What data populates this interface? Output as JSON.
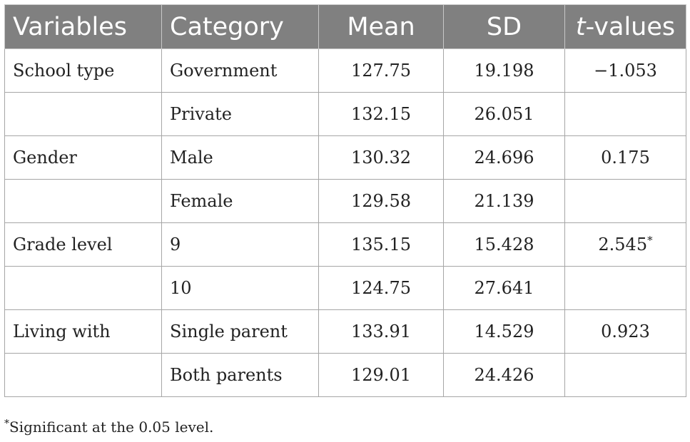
{
  "table": {
    "headers": {
      "variables": "Variables",
      "category": "Category",
      "mean": "Mean",
      "sd": "SD",
      "t_italic": "t",
      "t_rest": "-values"
    },
    "rows": [
      {
        "variable": "School type",
        "category": "Government",
        "mean": "127.75",
        "sd": "19.198",
        "t": "−1.053",
        "sig": ""
      },
      {
        "variable": "",
        "category": "Private",
        "mean": "132.15",
        "sd": "26.051",
        "t": "",
        "sig": ""
      },
      {
        "variable": "Gender",
        "category": "Male",
        "mean": "130.32",
        "sd": "24.696",
        "t": "0.175",
        "sig": ""
      },
      {
        "variable": "",
        "category": "Female",
        "mean": "129.58",
        "sd": "21.139",
        "t": "",
        "sig": ""
      },
      {
        "variable": "Grade level",
        "category": "9",
        "mean": "135.15",
        "sd": "15.428",
        "t": "2.545",
        "sig": "*"
      },
      {
        "variable": "",
        "category": "10",
        "mean": "124.75",
        "sd": "27.641",
        "t": "",
        "sig": ""
      },
      {
        "variable": "Living with",
        "category": "Single parent",
        "mean": "133.91",
        "sd": "14.529",
        "t": "0.923",
        "sig": ""
      },
      {
        "variable": "",
        "category": "Both parents",
        "mean": "129.01",
        "sd": "24.426",
        "t": "",
        "sig": ""
      }
    ]
  },
  "footnote": {
    "mark": "*",
    "text": "Significant at the 0.05 level."
  },
  "colors": {
    "header_bg": "#808080",
    "header_text": "#ffffff",
    "border": "#a6a6a6"
  }
}
